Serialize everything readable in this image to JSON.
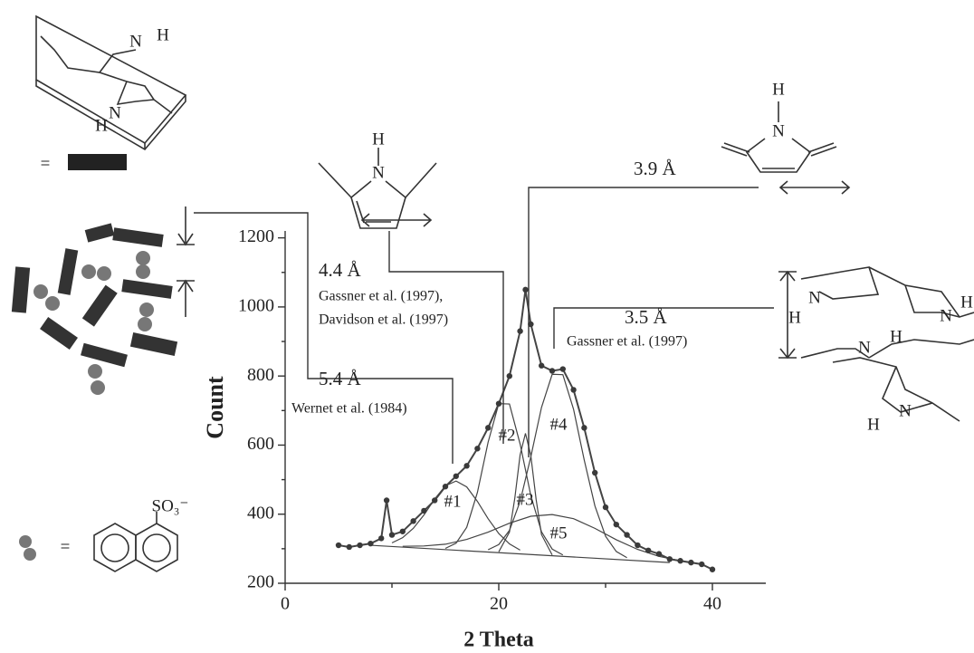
{
  "chart_data": {
    "type": "scatter",
    "x_label": "2 Theta",
    "y_label": "Count",
    "xlim": [
      0,
      45
    ],
    "ylim": [
      200,
      1220
    ],
    "xticks": [
      0,
      20,
      40
    ],
    "x_minor_ticks": [
      10,
      30
    ],
    "yticks": [
      200,
      400,
      600,
      800,
      1000,
      1200
    ],
    "y_minor_ticks": [
      300,
      500,
      700,
      900,
      1100
    ],
    "data": {
      "color": "#3a3a3a",
      "x": [
        5,
        6,
        7,
        8,
        9,
        9.5,
        10,
        11,
        12,
        13,
        14,
        15,
        16,
        17,
        18,
        19,
        20,
        21,
        22,
        22.5,
        23,
        24,
        25,
        26,
        27,
        28,
        29,
        30,
        31,
        32,
        33,
        34,
        35,
        36,
        37,
        38,
        39,
        40
      ],
      "values": [
        310,
        305,
        310,
        315,
        330,
        440,
        340,
        350,
        380,
        410,
        440,
        480,
        510,
        540,
        590,
        650,
        720,
        800,
        930,
        1050,
        950,
        830,
        815,
        820,
        760,
        650,
        520,
        420,
        370,
        340,
        310,
        295,
        285,
        270,
        265,
        260,
        255,
        240
      ]
    },
    "fits": [
      {
        "label": "#1",
        "x": [
          10,
          11,
          12,
          13,
          14,
          15,
          16,
          17,
          18,
          19,
          20,
          21,
          22
        ],
        "values": [
          317,
          332,
          359,
          398,
          444,
          482,
          496,
          479,
          437,
          387,
          344,
          314,
          296
        ]
      },
      {
        "label": "#2",
        "x": [
          15,
          16,
          17,
          18,
          19,
          20,
          21,
          22,
          23,
          24,
          25,
          26
        ],
        "values": [
          301,
          316,
          362,
          463,
          608,
          720,
          719,
          603,
          454,
          349,
          299,
          282
        ]
      },
      {
        "label": "#3",
        "x": [
          20,
          21,
          21.5,
          22,
          22.5,
          23,
          23.5,
          24,
          25
        ],
        "values": [
          291,
          348,
          446,
          572,
          634,
          570,
          442,
          341,
          282
        ]
      },
      {
        "label": "#4",
        "x": [
          19,
          20,
          21,
          22,
          23,
          24,
          25,
          26,
          27,
          28,
          29,
          30,
          31,
          32
        ],
        "values": [
          297,
          312,
          353,
          437,
          566,
          709,
          805,
          804,
          704,
          557,
          424,
          336,
          292,
          274
        ]
      },
      {
        "label": "#5",
        "x": [
          11,
          13,
          15,
          17,
          19,
          21,
          23,
          25,
          27,
          29,
          31,
          33,
          35,
          37
        ],
        "values": [
          307,
          308,
          313,
          327,
          348,
          374,
          394,
          399,
          387,
          359,
          326,
          298,
          278,
          265
        ]
      }
    ],
    "baseline": {
      "x": [
        8,
        36
      ],
      "values": [
        310,
        260
      ]
    },
    "annotations": [
      "3.9 Å",
      "4.4 Å",
      "Gassner et al. (1997),",
      "Davidson et al. (1997)",
      "5.4 Å",
      "Wernet et al. (1984)",
      "3.5 Å",
      "Gassner et al. (1997)"
    ],
    "structure_labels": [
      "N",
      "H",
      "N",
      "H",
      "=",
      "H",
      "N",
      "H",
      "N",
      "N",
      "H",
      "N",
      "H",
      "H",
      "N",
      "N",
      "H",
      "SO₃⁻",
      "="
    ]
  }
}
